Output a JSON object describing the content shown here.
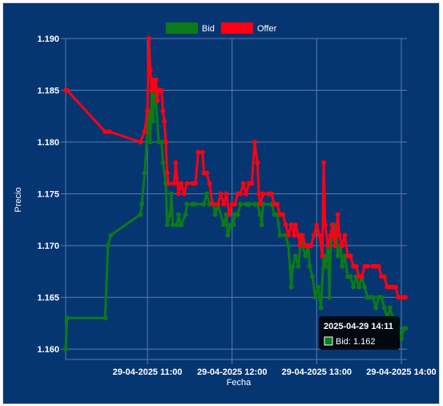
{
  "chart_data": {
    "type": "line",
    "xlabel": "Fecha",
    "ylabel": "Precio",
    "ylim": [
      1.159,
      1.19
    ],
    "y_ticks": [
      "1.160",
      "1.165",
      "1.170",
      "1.175",
      "1.180",
      "1.185",
      "1.190"
    ],
    "x_ticks": [
      {
        "label": "29-04-2025 11:00",
        "time": "2025-04-29 11:00"
      },
      {
        "label": "29-04-2025 12:00",
        "time": "2025-04-29 12:00"
      },
      {
        "label": "29-04-2025 13:00",
        "time": "2025-04-29 13:00"
      },
      {
        "label": "29-04-2025 14:00",
        "time": "2025-04-29 14:00"
      }
    ],
    "xlim": [
      "2025-04-29 10:02",
      "2025-04-29 14:04"
    ],
    "grid": true,
    "legend_position": "top-center",
    "colors": {
      "background": "#063672",
      "grid": "#5b7bb0",
      "text": "#ffffff",
      "bid": "#0b7a18",
      "offer": "#ff0014"
    },
    "series": [
      {
        "name": "Bid",
        "color": "#0b7a18",
        "points": [
          [
            "2025-04-29 10:02",
            1.16
          ],
          [
            "2025-04-29 10:03",
            1.163
          ],
          [
            "2025-04-29 10:30",
            1.163
          ],
          [
            "2025-04-29 10:32",
            1.17
          ],
          [
            "2025-04-29 10:34",
            1.171
          ],
          [
            "2025-04-29 10:55",
            1.173
          ],
          [
            "2025-04-29 10:56",
            1.174
          ],
          [
            "2025-04-29 10:58",
            1.177
          ],
          [
            "2025-04-29 11:00",
            1.181
          ],
          [
            "2025-04-29 11:01",
            1.183
          ],
          [
            "2025-04-29 11:02",
            1.18
          ],
          [
            "2025-04-29 11:03",
            1.185
          ],
          [
            "2025-04-29 11:04",
            1.182
          ],
          [
            "2025-04-29 11:05",
            1.185
          ],
          [
            "2025-04-29 11:06",
            1.184
          ],
          [
            "2025-04-29 11:08",
            1.18
          ],
          [
            "2025-04-29 11:10",
            1.18
          ],
          [
            "2025-04-29 11:11",
            1.178
          ],
          [
            "2025-04-29 11:13",
            1.176
          ],
          [
            "2025-04-29 11:14",
            1.172
          ],
          [
            "2025-04-29 11:16",
            1.173
          ],
          [
            "2025-04-29 11:17",
            1.175
          ],
          [
            "2025-04-29 11:18",
            1.172
          ],
          [
            "2025-04-29 11:21",
            1.172
          ],
          [
            "2025-04-29 11:22",
            1.173
          ],
          [
            "2025-04-29 11:24",
            1.172
          ],
          [
            "2025-04-29 11:27",
            1.173
          ],
          [
            "2025-04-29 11:28",
            1.174
          ],
          [
            "2025-04-29 11:32",
            1.174
          ],
          [
            "2025-04-29 11:34",
            1.174
          ],
          [
            "2025-04-29 11:40",
            1.174
          ],
          [
            "2025-04-29 11:42",
            1.175
          ],
          [
            "2025-04-29 11:44",
            1.174
          ],
          [
            "2025-04-29 11:47",
            1.174
          ],
          [
            "2025-04-29 11:48",
            1.173
          ],
          [
            "2025-04-29 11:50",
            1.174
          ],
          [
            "2025-04-29 11:54",
            1.172
          ],
          [
            "2025-04-29 11:56",
            1.173
          ],
          [
            "2025-04-29 11:57",
            1.171
          ],
          [
            "2025-04-29 11:59",
            1.172
          ],
          [
            "2025-04-29 12:01",
            1.172
          ],
          [
            "2025-04-29 12:02",
            1.173
          ],
          [
            "2025-04-29 12:04",
            1.173
          ],
          [
            "2025-04-29 12:06",
            1.174
          ],
          [
            "2025-04-29 12:10",
            1.174
          ],
          [
            "2025-04-29 12:12",
            1.174
          ],
          [
            "2025-04-29 12:16",
            1.174
          ],
          [
            "2025-04-29 12:18",
            1.174
          ],
          [
            "2025-04-29 12:20",
            1.173
          ],
          [
            "2025-04-29 12:21",
            1.172
          ],
          [
            "2025-04-29 12:22",
            1.174
          ],
          [
            "2025-04-29 12:28",
            1.174
          ],
          [
            "2025-04-29 12:30",
            1.173
          ],
          [
            "2025-04-29 12:32",
            1.173
          ],
          [
            "2025-04-29 12:34",
            1.171
          ],
          [
            "2025-04-29 12:38",
            1.171
          ],
          [
            "2025-04-29 12:40",
            1.17
          ],
          [
            "2025-04-29 12:42",
            1.166
          ],
          [
            "2025-04-29 12:43",
            1.168
          ],
          [
            "2025-04-29 12:45",
            1.169
          ],
          [
            "2025-04-29 12:47",
            1.168
          ],
          [
            "2025-04-29 12:49",
            1.171
          ],
          [
            "2025-04-29 12:50",
            1.17
          ],
          [
            "2025-04-29 12:52",
            1.169
          ],
          [
            "2025-04-29 12:54",
            1.17
          ],
          [
            "2025-04-29 12:55",
            1.168
          ],
          [
            "2025-04-29 12:57",
            1.167
          ],
          [
            "2025-04-29 12:59",
            1.165
          ],
          [
            "2025-04-29 13:01",
            1.166
          ],
          [
            "2025-04-29 13:03",
            1.164
          ],
          [
            "2025-04-29 13:05",
            1.169
          ],
          [
            "2025-04-29 13:06",
            1.168
          ],
          [
            "2025-04-29 13:08",
            1.17
          ],
          [
            "2025-04-29 13:09",
            1.165
          ],
          [
            "2025-04-29 13:10",
            1.17
          ],
          [
            "2025-04-29 13:12",
            1.172
          ],
          [
            "2025-04-29 13:14",
            1.171
          ],
          [
            "2025-04-29 13:15",
            1.169
          ],
          [
            "2025-04-29 13:17",
            1.17
          ],
          [
            "2025-04-29 13:18",
            1.168
          ],
          [
            "2025-04-29 13:20",
            1.169
          ],
          [
            "2025-04-29 13:22",
            1.167
          ],
          [
            "2025-04-29 13:24",
            1.167
          ],
          [
            "2025-04-29 13:26",
            1.166
          ],
          [
            "2025-04-29 13:28",
            1.167
          ],
          [
            "2025-04-29 13:30",
            1.166
          ],
          [
            "2025-04-29 13:32",
            1.167
          ],
          [
            "2025-04-29 13:34",
            1.166
          ],
          [
            "2025-04-29 13:36",
            1.165
          ],
          [
            "2025-04-29 13:38",
            1.165
          ],
          [
            "2025-04-29 13:40",
            1.165
          ],
          [
            "2025-04-29 13:42",
            1.164
          ],
          [
            "2025-04-29 13:44",
            1.165
          ],
          [
            "2025-04-29 13:46",
            1.165
          ],
          [
            "2025-04-29 13:48",
            1.164
          ],
          [
            "2025-04-29 13:50",
            1.163
          ],
          [
            "2025-04-29 13:52",
            1.164
          ],
          [
            "2025-04-29 13:54",
            1.163
          ],
          [
            "2025-04-29 13:56",
            1.163
          ],
          [
            "2025-04-29 13:58",
            1.162
          ],
          [
            "2025-04-29 14:00",
            1.161
          ],
          [
            "2025-04-29 14:02",
            1.162
          ],
          [
            "2025-04-29 14:03",
            1.162
          ]
        ]
      },
      {
        "name": "Offer",
        "color": "#ff0014",
        "points": [
          [
            "2025-04-29 10:02",
            1.185
          ],
          [
            "2025-04-29 10:03",
            1.185
          ],
          [
            "2025-04-29 10:30",
            1.181
          ],
          [
            "2025-04-29 10:33",
            1.181
          ],
          [
            "2025-04-29 10:55",
            1.18
          ],
          [
            "2025-04-29 10:58",
            1.181
          ],
          [
            "2025-04-29 11:00",
            1.183
          ],
          [
            "2025-04-29 11:01",
            1.19
          ],
          [
            "2025-04-29 11:02",
            1.187
          ],
          [
            "2025-04-29 11:03",
            1.185
          ],
          [
            "2025-04-29 11:04",
            1.186
          ],
          [
            "2025-04-29 11:05",
            1.185
          ],
          [
            "2025-04-29 11:06",
            1.186
          ],
          [
            "2025-04-29 11:07",
            1.184
          ],
          [
            "2025-04-29 11:08",
            1.185
          ],
          [
            "2025-04-29 11:10",
            1.185
          ],
          [
            "2025-04-29 11:11",
            1.183
          ],
          [
            "2025-04-29 11:12",
            1.182
          ],
          [
            "2025-04-29 11:13",
            1.18
          ],
          [
            "2025-04-29 11:14",
            1.177
          ],
          [
            "2025-04-29 11:15",
            1.176
          ],
          [
            "2025-04-29 11:19",
            1.176
          ],
          [
            "2025-04-29 11:20",
            1.178
          ],
          [
            "2025-04-29 11:22",
            1.175
          ],
          [
            "2025-04-29 11:24",
            1.176
          ],
          [
            "2025-04-29 11:26",
            1.175
          ],
          [
            "2025-04-29 11:28",
            1.176
          ],
          [
            "2025-04-29 11:32",
            1.176
          ],
          [
            "2025-04-29 11:34",
            1.176
          ],
          [
            "2025-04-29 11:36",
            1.179
          ],
          [
            "2025-04-29 11:39",
            1.179
          ],
          [
            "2025-04-29 11:40",
            1.177
          ],
          [
            "2025-04-29 11:42",
            1.177
          ],
          [
            "2025-04-29 11:44",
            1.176
          ],
          [
            "2025-04-29 11:46",
            1.174
          ],
          [
            "2025-04-29 11:50",
            1.174
          ],
          [
            "2025-04-29 11:52",
            1.175
          ],
          [
            "2025-04-29 11:54",
            1.174
          ],
          [
            "2025-04-29 11:56",
            1.175
          ],
          [
            "2025-04-29 11:58",
            1.173
          ],
          [
            "2025-04-29 12:00",
            1.174
          ],
          [
            "2025-04-29 12:02",
            1.174
          ],
          [
            "2025-04-29 12:04",
            1.175
          ],
          [
            "2025-04-29 12:06",
            1.175
          ],
          [
            "2025-04-29 12:08",
            1.176
          ],
          [
            "2025-04-29 12:10",
            1.175
          ],
          [
            "2025-04-29 12:12",
            1.176
          ],
          [
            "2025-04-29 12:14",
            1.176
          ],
          [
            "2025-04-29 12:16",
            1.18
          ],
          [
            "2025-04-29 12:18",
            1.178
          ],
          [
            "2025-04-29 12:19",
            1.175
          ],
          [
            "2025-04-29 12:20",
            1.174
          ],
          [
            "2025-04-29 12:22",
            1.175
          ],
          [
            "2025-04-29 12:26",
            1.175
          ],
          [
            "2025-04-29 12:28",
            1.175
          ],
          [
            "2025-04-29 12:30",
            1.174
          ],
          [
            "2025-04-29 12:32",
            1.174
          ],
          [
            "2025-04-29 12:34",
            1.173
          ],
          [
            "2025-04-29 12:36",
            1.173
          ],
          [
            "2025-04-29 12:38",
            1.172
          ],
          [
            "2025-04-29 12:40",
            1.171
          ],
          [
            "2025-04-29 12:42",
            1.172
          ],
          [
            "2025-04-29 12:44",
            1.171
          ],
          [
            "2025-04-29 12:45",
            1.172
          ],
          [
            "2025-04-29 12:47",
            1.171
          ],
          [
            "2025-04-29 12:48",
            1.17
          ],
          [
            "2025-04-29 12:50",
            1.171
          ],
          [
            "2025-04-29 12:52",
            1.17
          ],
          [
            "2025-04-29 12:54",
            1.17
          ],
          [
            "2025-04-29 12:56",
            1.17
          ],
          [
            "2025-04-29 12:58",
            1.171
          ],
          [
            "2025-04-29 13:00",
            1.172
          ],
          [
            "2025-04-29 13:02",
            1.171
          ],
          [
            "2025-04-29 13:04",
            1.169
          ],
          [
            "2025-04-29 13:05",
            1.178
          ],
          [
            "2025-04-29 13:06",
            1.172
          ],
          [
            "2025-04-29 13:08",
            1.17
          ],
          [
            "2025-04-29 13:10",
            1.171
          ],
          [
            "2025-04-29 13:11",
            1.172
          ],
          [
            "2025-04-29 13:13",
            1.17
          ],
          [
            "2025-04-29 13:15",
            1.173
          ],
          [
            "2025-04-29 13:16",
            1.171
          ],
          [
            "2025-04-29 13:18",
            1.17
          ],
          [
            "2025-04-29 13:20",
            1.171
          ],
          [
            "2025-04-29 13:22",
            1.169
          ],
          [
            "2025-04-29 13:24",
            1.169
          ],
          [
            "2025-04-29 13:26",
            1.168
          ],
          [
            "2025-04-29 13:28",
            1.168
          ],
          [
            "2025-04-29 13:30",
            1.167
          ],
          [
            "2025-04-29 13:32",
            1.167
          ],
          [
            "2025-04-29 13:34",
            1.168
          ],
          [
            "2025-04-29 13:36",
            1.168
          ],
          [
            "2025-04-29 13:40",
            1.168
          ],
          [
            "2025-04-29 13:42",
            1.168
          ],
          [
            "2025-04-29 13:44",
            1.168
          ],
          [
            "2025-04-29 13:46",
            1.167
          ],
          [
            "2025-04-29 13:48",
            1.167
          ],
          [
            "2025-04-29 13:50",
            1.166
          ],
          [
            "2025-04-29 13:52",
            1.166
          ],
          [
            "2025-04-29 13:54",
            1.166
          ],
          [
            "2025-04-29 13:56",
            1.166
          ],
          [
            "2025-04-29 13:58",
            1.165
          ],
          [
            "2025-04-29 14:00",
            1.165
          ],
          [
            "2025-04-29 14:02",
            1.165
          ],
          [
            "2025-04-29 14:03",
            1.165
          ]
        ]
      }
    ],
    "tooltip": {
      "title": "2025-04-29 14:11",
      "label": "Bid: 1.162",
      "series_color": "#0b7a18"
    }
  }
}
